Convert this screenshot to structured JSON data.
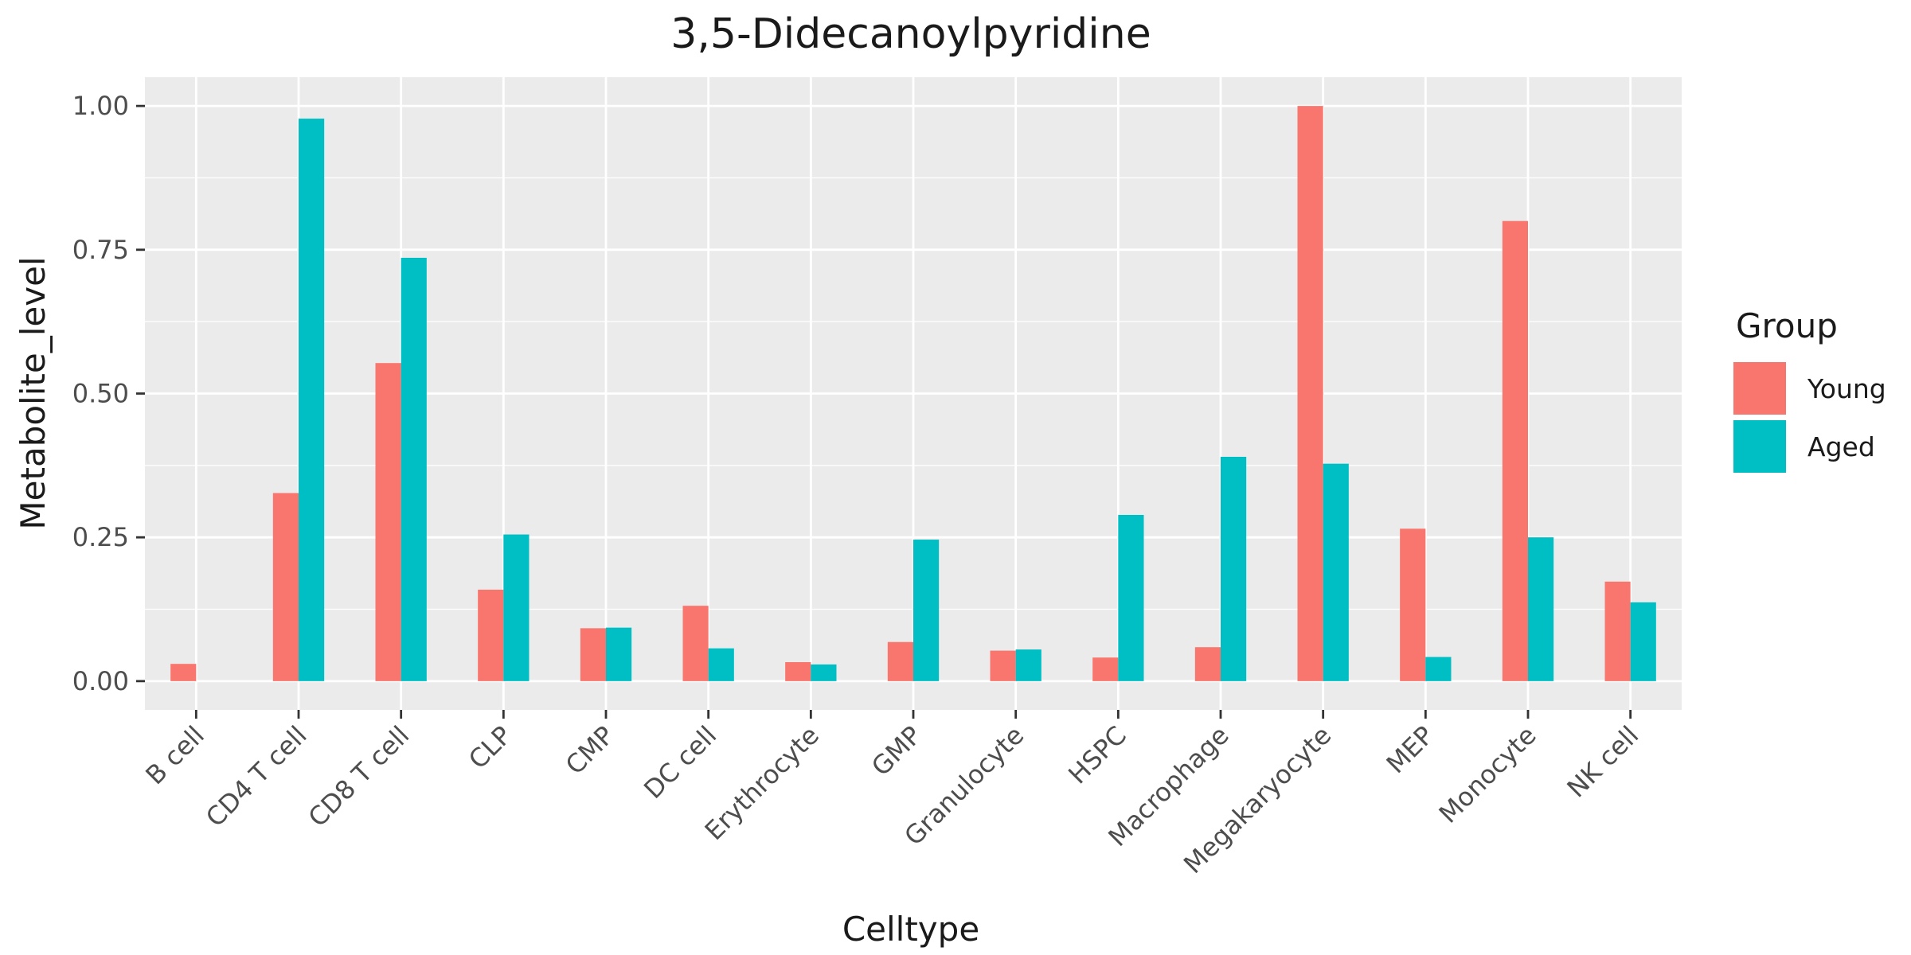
{
  "chart_data": {
    "type": "bar",
    "title": "3,5-Didecanoylpyridine",
    "xlabel": "Celltype",
    "ylabel": "Metabolite_level",
    "categories": [
      "B cell",
      "CD4 T cell",
      "CD8 T cell",
      "CLP",
      "CMP",
      "DC cell",
      "Erythrocyte",
      "GMP",
      "Granulocyte",
      "HSPC",
      "Macrophage",
      "Megakaryocyte",
      "MEP",
      "Monocyte",
      "NK cell"
    ],
    "series": [
      {
        "name": "Young",
        "color": "#F8766D",
        "values": [
          0.03,
          0.327,
          0.553,
          0.159,
          0.092,
          0.131,
          0.033,
          0.068,
          0.053,
          0.041,
          0.059,
          1.0,
          0.265,
          0.8,
          0.173
        ]
      },
      {
        "name": "Aged",
        "color": "#00BFC4",
        "values": [
          0.0,
          0.978,
          0.736,
          0.255,
          0.093,
          0.057,
          0.029,
          0.246,
          0.055,
          0.289,
          0.39,
          0.378,
          0.042,
          0.25,
          0.137
        ]
      }
    ],
    "ylim": [
      -0.05,
      1.05
    ],
    "yticks": [
      0.0,
      0.25,
      0.5,
      0.75,
      1.0
    ],
    "ytick_labels": [
      "0.00",
      "0.25",
      "0.50",
      "0.75",
      "1.00"
    ],
    "legend": {
      "title": "Group",
      "position": "right"
    },
    "grid": true,
    "panel_background": "#EBEBEB"
  }
}
